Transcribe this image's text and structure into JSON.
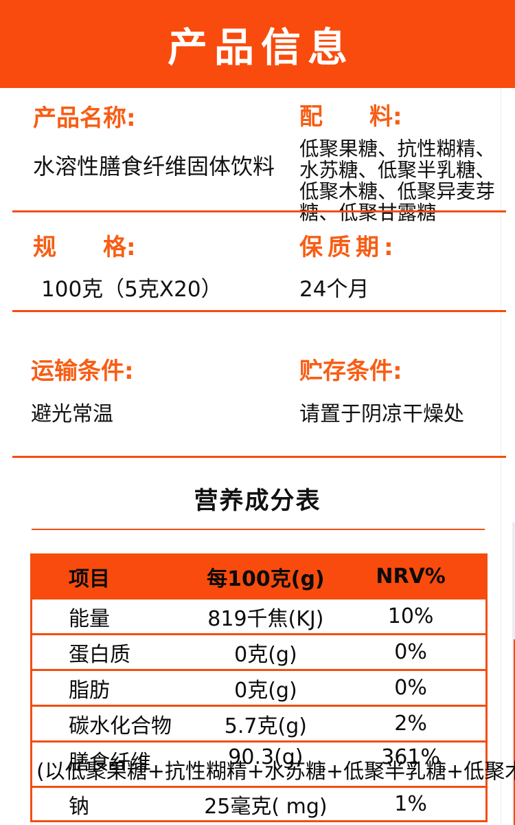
{
  "page": {
    "title": "产品信息",
    "accent": "#f94b0d"
  },
  "sections": {
    "product_name": {
      "label": "产品名称:",
      "value": "水溶性膳食纤维固体饮料"
    },
    "ingredients": {
      "label": "配　　料:",
      "value": "低聚果糖、抗性糊精、水苏糖、低聚半乳糖、低聚木糖、低聚异麦芽糖、低聚甘露糖"
    },
    "spec": {
      "label": "规　　格:",
      "value": "100克（5克X20）"
    },
    "shelf_life": {
      "label": "保质期:",
      "value": "24个月"
    },
    "transport": {
      "label": "运输条件:",
      "value": "避光常温"
    },
    "storage": {
      "label": "贮存条件:",
      "value": "请置于阴凉干燥处"
    }
  },
  "nutrition": {
    "title": "营养成分表",
    "headers": [
      "项目",
      "每100克(g)",
      "NRV%"
    ],
    "rows": [
      {
        "item": "能量",
        "amount": "819千焦(KJ)",
        "nrv": "10%"
      },
      {
        "item": "蛋白质",
        "amount": "0克(g)",
        "nrv": "0%"
      },
      {
        "item": "脂肪",
        "amount": "0克(g)",
        "nrv": "0%"
      },
      {
        "item": "碳水化合物",
        "amount": "5.7克(g)",
        "nrv": "2%"
      },
      {
        "item": "膳食纤维",
        "amount": "90.3(g)",
        "nrv": "361%",
        "note": "(以低聚果糖+抗性糊精+水苏糖+低聚半乳糖+低聚木糖+低聚异麦芽糖+低聚甘露糖计)"
      },
      {
        "item": "钠",
        "amount": "25毫克( mg)",
        "nrv": "1%"
      }
    ]
  }
}
